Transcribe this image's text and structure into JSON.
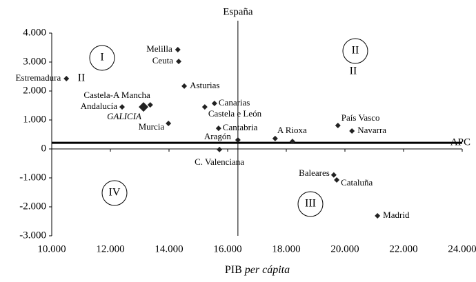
{
  "chart_data": {
    "type": "scatter",
    "x_label": {
      "text": "PIB",
      "italic": "per cápita"
    },
    "names": [
      "Estremadura",
      "Melilla",
      "Ceuta",
      "Asturias",
      "Castela-A Mancha",
      "Andalucía",
      "GALICIA",
      "Murcia",
      "Canarias",
      "Castela e León",
      "Cantabria",
      "Aragón",
      "C. Valenciana",
      "A Rioxa",
      null,
      "País Vasco",
      "Navarra",
      "Baleares",
      "Cataluña",
      "Madrid"
    ],
    "x": [
      10500,
      14300,
      14330,
      14520,
      13360,
      12400,
      13130,
      13980,
      15550,
      15220,
      15690,
      16350,
      15720,
      17620,
      18210,
      19760,
      20240,
      19620,
      19720,
      21110
    ],
    "y": [
      2430,
      3430,
      3020,
      2170,
      1520,
      1450,
      1450,
      880,
      1570,
      1450,
      710,
      310,
      -20,
      360,
      260,
      810,
      620,
      -900,
      -1070,
      -2310
    ],
    "color": "#222222",
    "xlim": [
      10000,
      24000
    ],
    "xticks": [
      {
        "value": 10000,
        "label": "10.000"
      },
      {
        "value": 12000,
        "label": "12.000"
      },
      {
        "value": 14000,
        "label": "14.000"
      },
      {
        "value": 16000,
        "label": "16.000"
      },
      {
        "value": 18000,
        "label": "18.000"
      },
      {
        "value": 20000,
        "label": "20.000"
      },
      {
        "value": 22000,
        "label": "22.000"
      },
      {
        "value": 24000,
        "label": "24.000"
      }
    ],
    "ylim": [
      -3000,
      4000
    ],
    "yticks": [
      {
        "value": -3000,
        "label": "-3.000"
      },
      {
        "value": -2000,
        "label": "-2.000"
      },
      {
        "value": -1000,
        "label": "-1.000"
      },
      0,
      {
        "value": 1000,
        "label": "1.000"
      },
      {
        "value": 2000,
        "label": "2.000"
      },
      {
        "value": 3000,
        "label": "3.000"
      },
      {
        "value": 4000,
        "label": "4.000"
      }
    ],
    "reference_x": {
      "value": 16350,
      "label": "España"
    },
    "reference_y": {
      "value": 210,
      "label": "APC"
    },
    "annotations": [
      "I",
      "II",
      "II",
      "II",
      "III",
      "IV"
    ]
  }
}
